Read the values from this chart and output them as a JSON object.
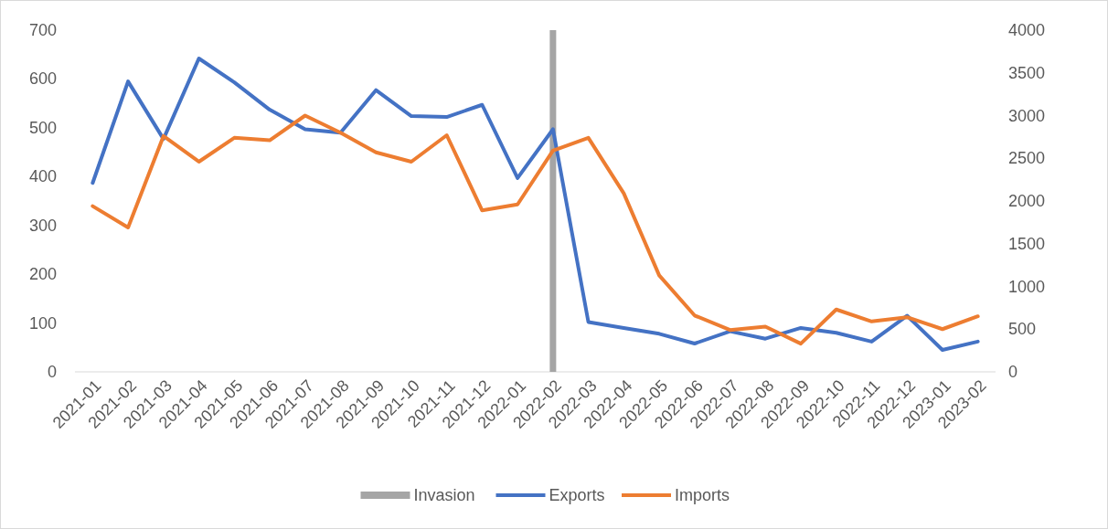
{
  "chart_data": {
    "type": "line",
    "categories": [
      "2021-01",
      "2021-02",
      "2021-03",
      "2021-04",
      "2021-05",
      "2021-06",
      "2021-07",
      "2021-08",
      "2021-09",
      "2021-10",
      "2021-11",
      "2021-12",
      "2022-01",
      "2022-02",
      "2022-03",
      "2022-04",
      "2022-05",
      "2022-06",
      "2022-07",
      "2022-08",
      "2022-09",
      "2022-10",
      "2022-11",
      "2022-12",
      "2023-01",
      "2023-02"
    ],
    "series": [
      {
        "name": "Exports",
        "color": "#4472c4",
        "values": [
          387,
          595,
          477,
          642,
          593,
          537,
          497,
          490,
          577,
          524,
          522,
          547,
          397,
          497,
          102,
          90,
          78,
          58,
          83,
          68,
          90,
          80,
          62,
          115,
          45,
          62
        ]
      },
      {
        "name": "Imports",
        "color": "#ed7d31",
        "axis": "y2",
        "values": [
          1940,
          1690,
          2760,
          2460,
          2740,
          2710,
          3000,
          2800,
          2570,
          2460,
          2770,
          1890,
          1960,
          2590,
          2740,
          2090,
          1130,
          660,
          490,
          530,
          330,
          730,
          590,
          640,
          500,
          650
        ]
      }
    ],
    "ref_lines": [
      {
        "axis": "x",
        "value": "2022-02",
        "label": "Invasion",
        "color": "#a5a5a5"
      }
    ],
    "ylim": [
      0,
      700
    ],
    "yticks": [
      0,
      100,
      200,
      300,
      400,
      500,
      600,
      700
    ],
    "y2lim": [
      0,
      4000
    ],
    "y2ticks": [
      0,
      500,
      1000,
      1500,
      2000,
      2500,
      3000,
      3500,
      4000
    ],
    "legend": "bottom",
    "marker": "none",
    "line_style": "solid"
  }
}
